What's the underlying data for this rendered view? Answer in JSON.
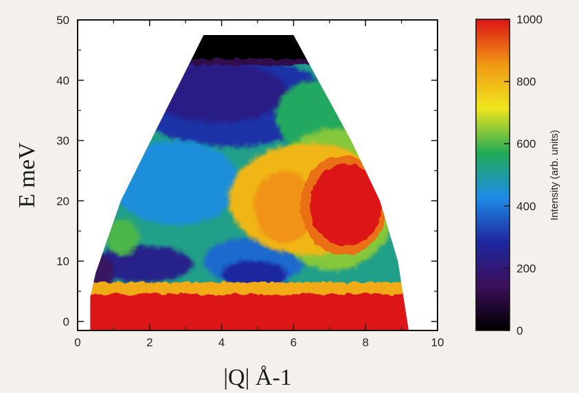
{
  "chart_data": {
    "type": "heatmap",
    "xlabel": "|Q| Å-1",
    "ylabel": "E meV",
    "xlim": [
      0,
      10
    ],
    "ylim": [
      -1.5,
      50
    ],
    "x_ticks": [
      "0",
      "2",
      "4",
      "6",
      "8",
      "10"
    ],
    "y_ticks": [
      "0",
      "10",
      "20",
      "30",
      "40",
      "50"
    ],
    "colorbar": {
      "label": "Intensity (arb. units)",
      "range": [
        0,
        1000
      ],
      "ticks": [
        "0",
        "200",
        "400",
        "600",
        "800",
        "1000"
      ],
      "colormap": [
        "#000000",
        "#3c0f5a",
        "#1e28a0",
        "#1e8ce6",
        "#22aa55",
        "#f0e61e",
        "#f09614",
        "#dc1414"
      ]
    },
    "coverage": {
      "q_min_at_E": [
        [
          0.35,
          -1.5
        ],
        [
          0.35,
          4
        ],
        [
          0.5,
          8
        ],
        [
          1.2,
          20
        ],
        [
          2.2,
          32
        ],
        [
          3.0,
          41.5
        ],
        [
          3.5,
          47.5
        ]
      ],
      "q_max_at_E": [
        [
          6.0,
          47.5
        ],
        [
          6.5,
          42
        ],
        [
          7.6,
          30
        ],
        [
          8.4,
          20
        ],
        [
          8.9,
          10
        ],
        [
          9.2,
          -1.5
        ]
      ]
    },
    "intensity_regions": [
      {
        "name": "elastic line",
        "q": [
          0.35,
          9.2
        ],
        "e": [
          -1.5,
          4.5
        ],
        "intensity": 1000
      },
      {
        "name": "magnetic excitation",
        "q": [
          6.5,
          8.5
        ],
        "e": [
          12,
          28
        ],
        "intensity": 1000
      },
      {
        "name": "yellow halo",
        "q": [
          4.5,
          6.5
        ],
        "e": [
          13,
          25
        ],
        "intensity": 800
      },
      {
        "name": "low-Q band",
        "q": [
          0.5,
          3.0
        ],
        "e": [
          6,
          12
        ],
        "intensity": 250
      },
      {
        "name": "upper region",
        "q": [
          2,
          6.5
        ],
        "e": [
          32,
          42
        ],
        "intensity": 220
      },
      {
        "name": "top band",
        "q": [
          3.5,
          6.0
        ],
        "e": [
          43,
          47.5
        ],
        "intensity": 0
      }
    ]
  }
}
